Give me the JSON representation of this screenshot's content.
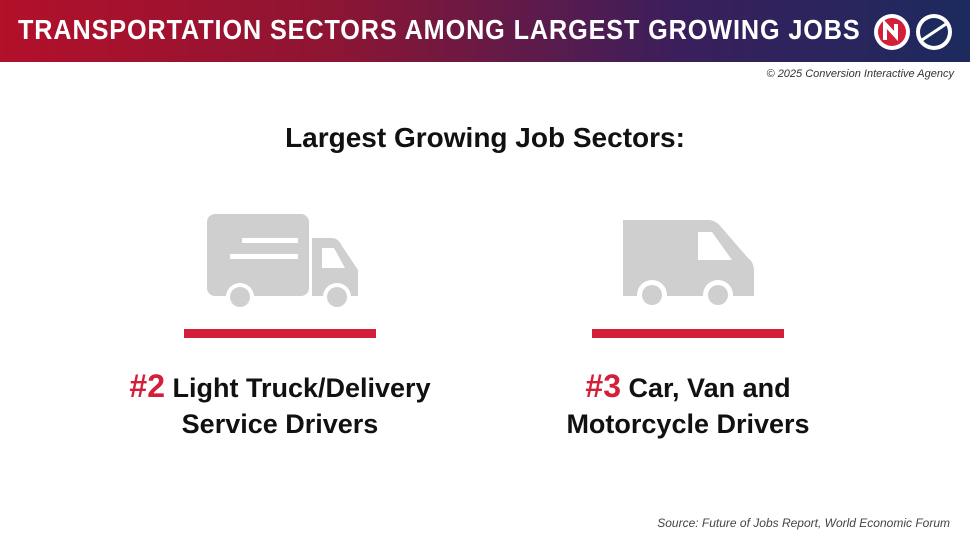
{
  "header": {
    "title": "TRANSPORTATION SECTORS AMONG LARGEST GROWING JOBS"
  },
  "copyright": "© 2025 Conversion Interactive Agency",
  "heading": "Largest Growing Job Sectors:",
  "items": [
    {
      "rank": "#2",
      "lines": [
        "Light Truck/Delivery",
        "Service Drivers"
      ]
    },
    {
      "rank": "#3",
      "lines": [
        "Car, Van and",
        "Motorcycle Drivers"
      ]
    }
  ],
  "source": "Source: Future of Jobs Report, World Economic Forum"
}
